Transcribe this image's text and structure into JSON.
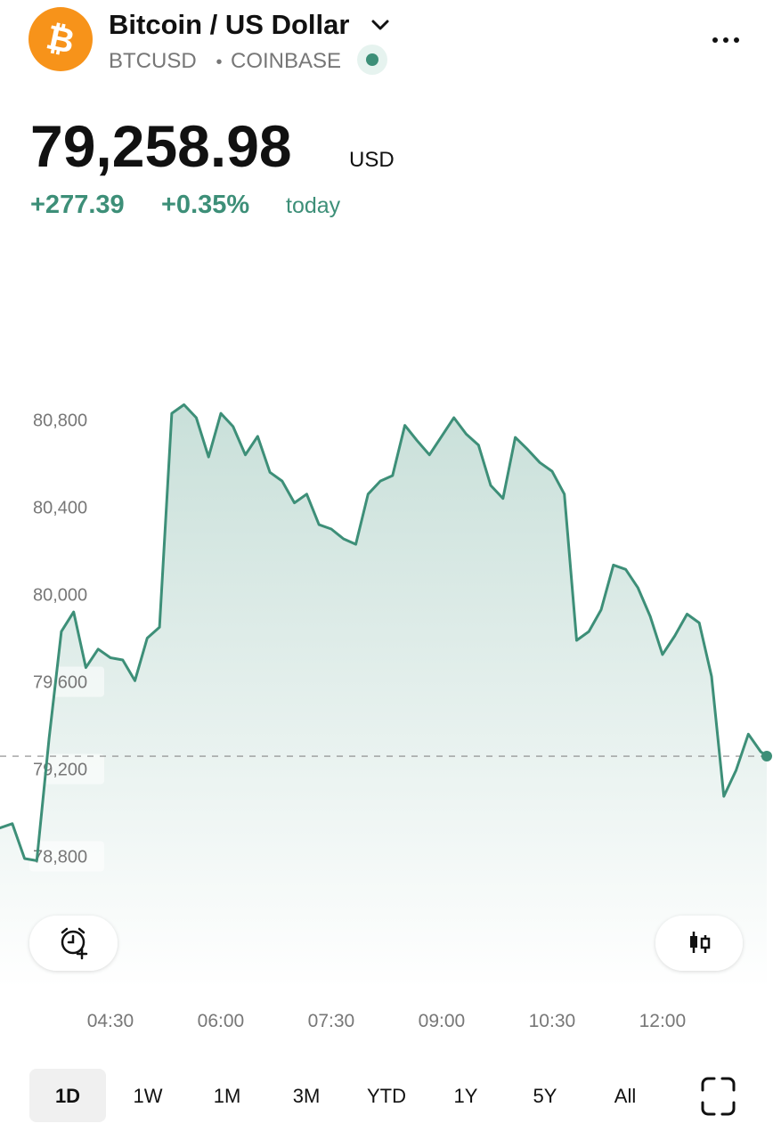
{
  "header": {
    "logo_symbol": "₿",
    "title": "Bitcoin / US Dollar",
    "symbol": "BTCUSD",
    "separator": "•",
    "exchange": "COINBASE",
    "price": "79,258.98",
    "currency": "USD",
    "change": "+277.39",
    "change_percent": "+0.35%",
    "change_period": "today"
  },
  "chart_data": {
    "type": "line",
    "color": "#3d8f78",
    "x": [
      "03:00",
      "03:10",
      "03:20",
      "03:30",
      "03:40",
      "03:50",
      "04:00",
      "04:10",
      "04:20",
      "04:30",
      "04:40",
      "04:50",
      "05:00",
      "05:10",
      "05:20",
      "05:30",
      "05:40",
      "05:50",
      "06:00",
      "06:10",
      "06:20",
      "06:30",
      "06:40",
      "06:50",
      "07:00",
      "07:10",
      "07:20",
      "07:30",
      "07:40",
      "07:50",
      "08:00",
      "08:10",
      "08:20",
      "08:30",
      "08:40",
      "08:50",
      "09:00",
      "09:10",
      "09:20",
      "09:30",
      "09:40",
      "09:50",
      "10:00",
      "10:10",
      "10:20",
      "10:30",
      "10:40",
      "10:50",
      "11:00",
      "11:10",
      "11:20",
      "11:30",
      "11:40",
      "11:50",
      "12:00",
      "12:10",
      "12:20",
      "12:30",
      "12:40",
      "12:50",
      "13:00",
      "13:10",
      "13:20",
      "13:25"
    ],
    "values": [
      78930,
      78950,
      78790,
      78780,
      79340,
      79830,
      79920,
      79665,
      79750,
      79710,
      79700,
      79605,
      79800,
      79850,
      80830,
      80870,
      80810,
      80630,
      80830,
      80770,
      80640,
      80725,
      80560,
      80520,
      80420,
      80460,
      80320,
      80300,
      80255,
      80230,
      80460,
      80520,
      80545,
      80775,
      80705,
      80640,
      80725,
      80810,
      80735,
      80685,
      80500,
      80440,
      80720,
      80665,
      80605,
      80565,
      80460,
      79790,
      79830,
      79930,
      80135,
      80115,
      80030,
      79900,
      79725,
      79810,
      79910,
      79870,
      79625,
      79075,
      79195,
      79360,
      79280,
      79259
    ],
    "xlim": [
      "03:00",
      "13:25"
    ],
    "xticks": [
      "04:30",
      "06:00",
      "07:30",
      "09:00",
      "10:30",
      "12:00"
    ],
    "ylim": [
      78300,
      81500
    ],
    "yticks": [
      {
        "value": 78800,
        "label": "78,800"
      },
      {
        "value": 79200,
        "label": "79,200"
      },
      {
        "value": 79600,
        "label": "79,600"
      },
      {
        "value": 80000,
        "label": "80,000"
      },
      {
        "value": 80400,
        "label": "80,400"
      },
      {
        "value": 80800,
        "label": "80,800"
      }
    ]
  },
  "ranges": [
    "1D",
    "1W",
    "1M",
    "3M",
    "YTD",
    "1Y",
    "5Y",
    "All"
  ],
  "selected_range": 0
}
